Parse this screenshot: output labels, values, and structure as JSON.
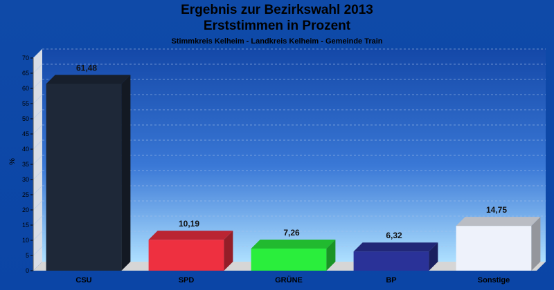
{
  "chart_data": {
    "type": "bar",
    "title": "Ergebnis zur Bezirkswahl 2013",
    "subtitle": "Erststimmen in Prozent",
    "subsubtitle": "Stimmkreis Kelheim - Landkreis Kelheim - Gemeinde Train",
    "ylabel": "%",
    "xlabel": "",
    "ylim": [
      0,
      70
    ],
    "yticks": [
      0,
      5,
      10,
      15,
      20,
      25,
      30,
      35,
      40,
      45,
      50,
      55,
      60,
      65,
      70
    ],
    "grid": true,
    "categories": [
      "CSU",
      "SPD",
      "GRÜNE",
      "BP",
      "Sonstige"
    ],
    "values": [
      61.48,
      10.19,
      7.26,
      6.32,
      14.75
    ],
    "value_labels": [
      "61,48",
      "10,19",
      "7,26",
      "6,32",
      "14,75"
    ],
    "colors": [
      "#1e2838",
      "#ee3040",
      "#2aee3c",
      "#2a3298",
      "#eef2fb"
    ]
  }
}
